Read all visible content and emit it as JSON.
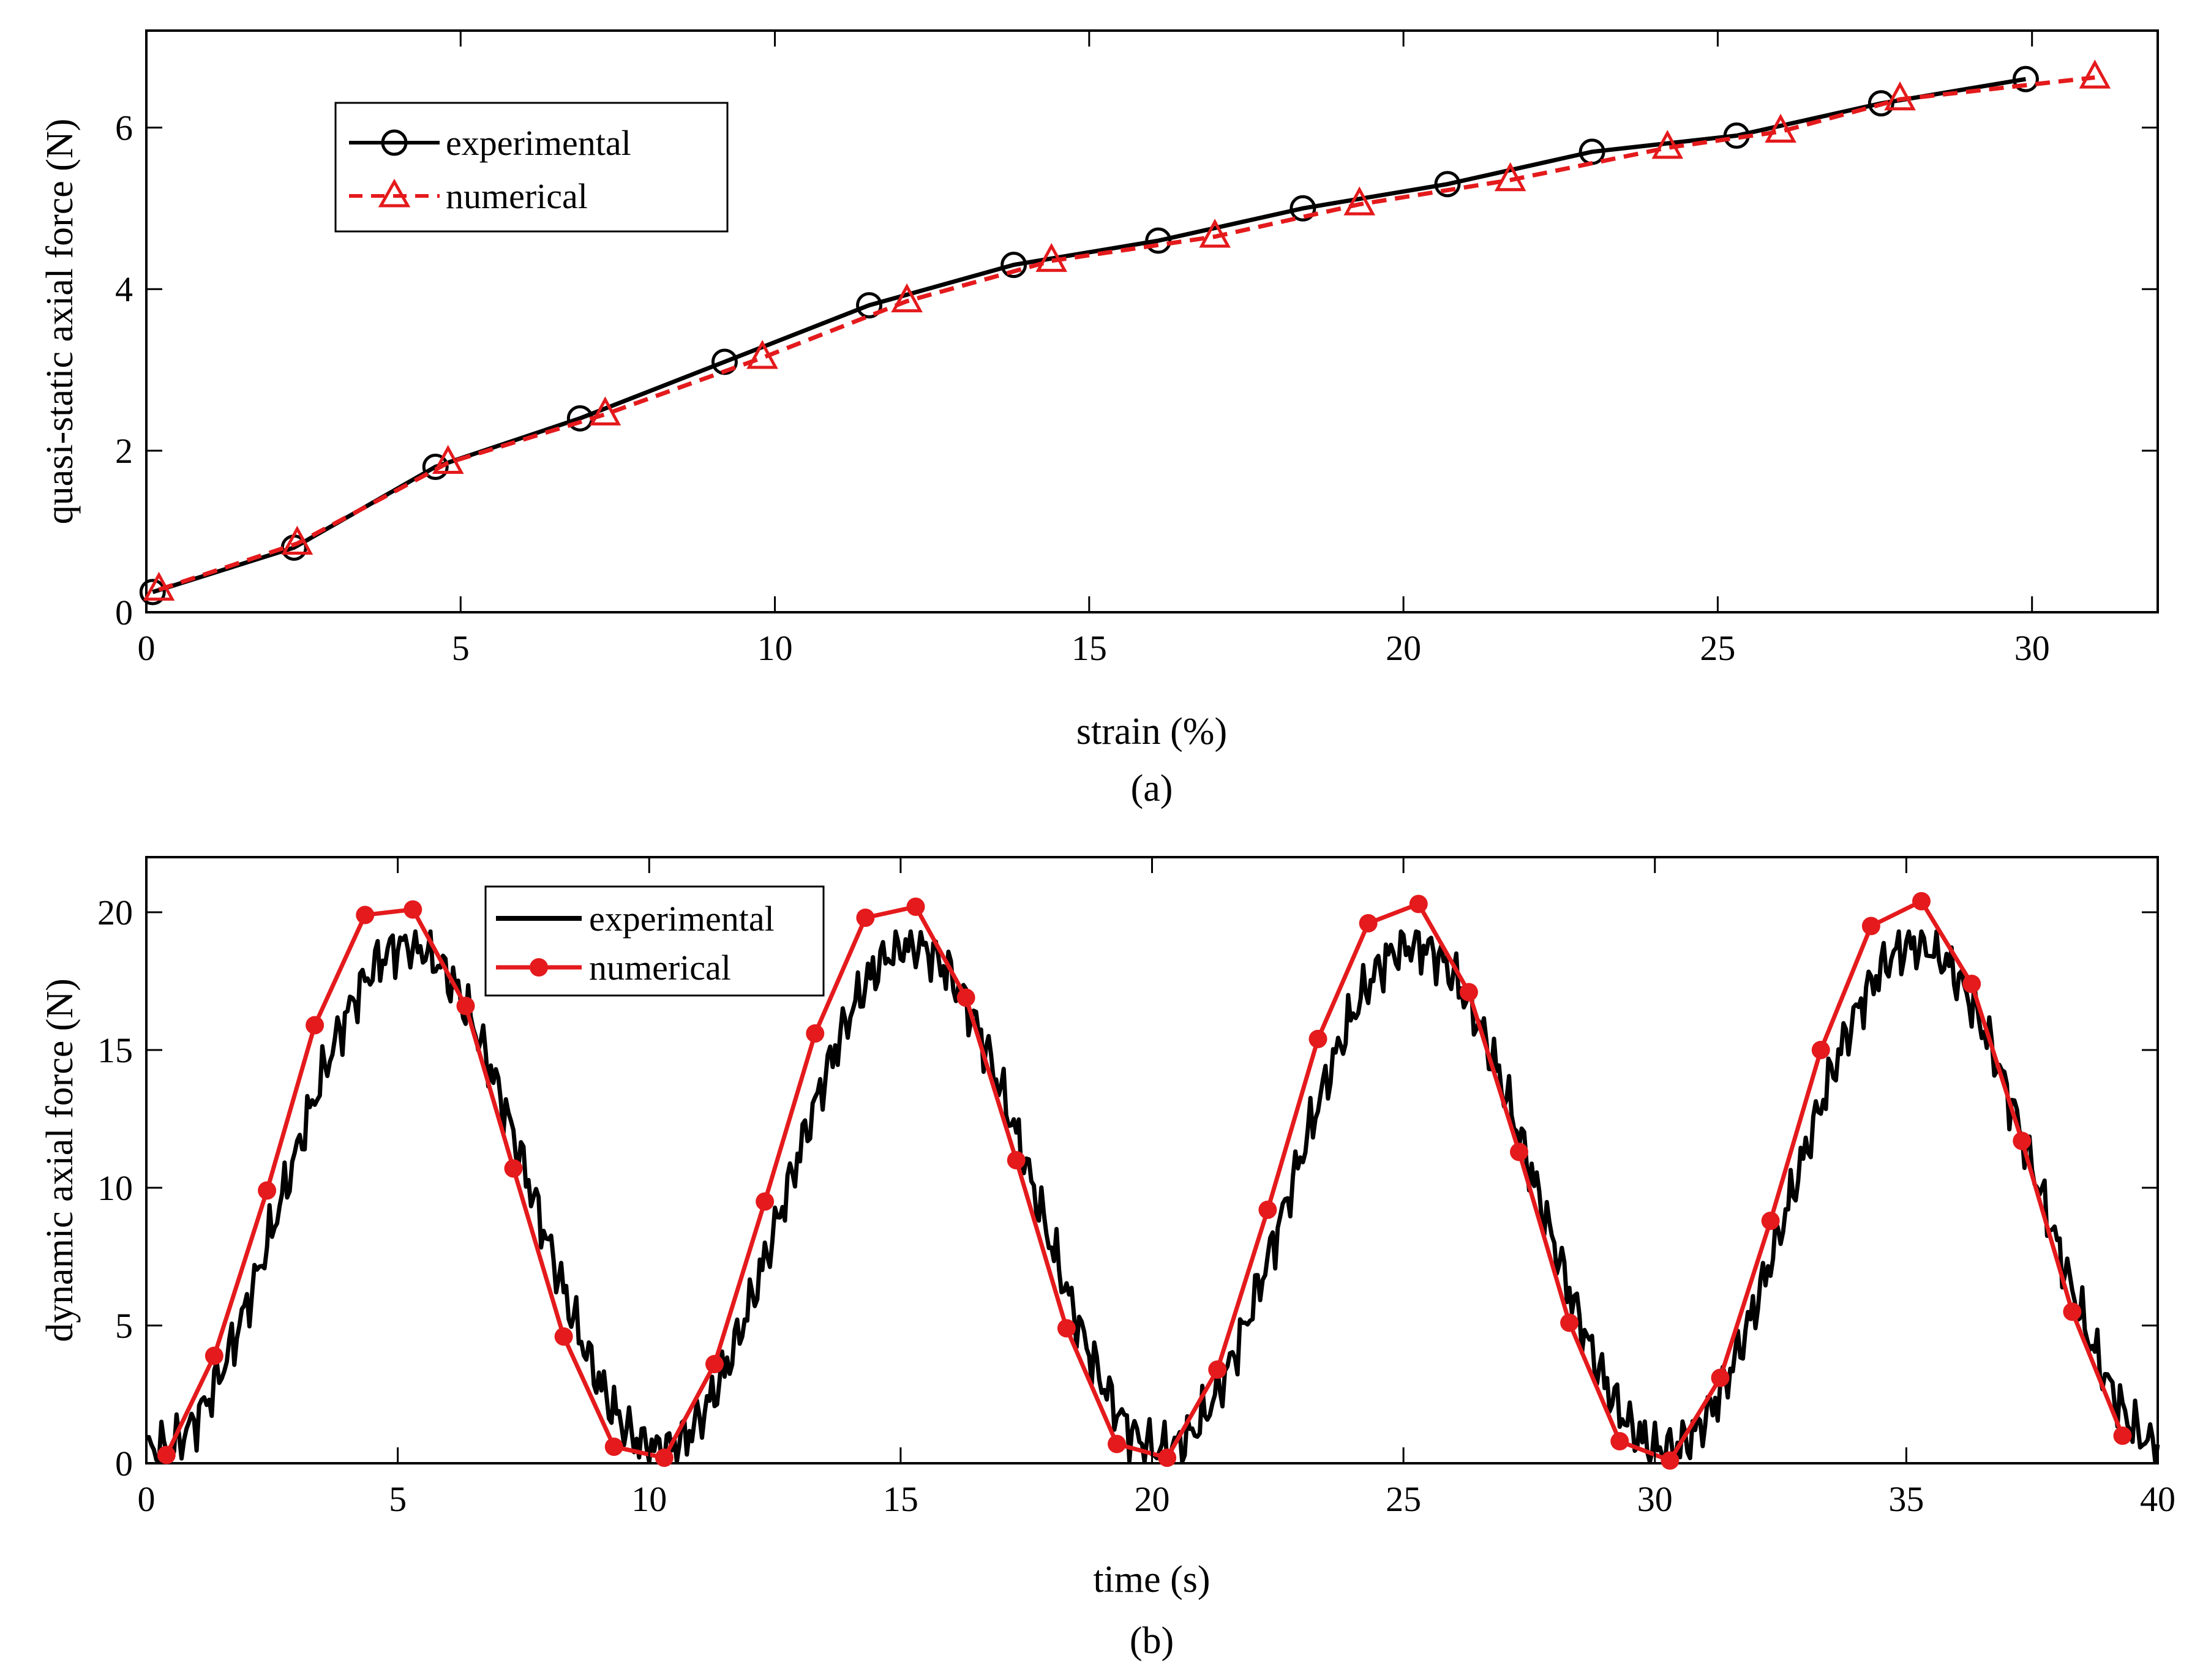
{
  "colors": {
    "experimental": "#000000",
    "numerical": "#e41a1c",
    "axes": "#000000",
    "background": "#ffffff"
  },
  "chart_data": [
    {
      "type": "line",
      "caption": "(a)",
      "title": "",
      "xlabel": "strain (%)",
      "ylabel": "quasi-static axial force (N)",
      "xlim": [
        0,
        32
      ],
      "ylim": [
        0,
        7.2
      ],
      "xticks": [
        0,
        5,
        10,
        15,
        20,
        25,
        30
      ],
      "yticks": [
        0,
        2,
        4,
        6
      ],
      "legend_position": "top-left",
      "series": [
        {
          "name": "experimental",
          "marker": "circle",
          "line": "solid",
          "color": "#000000",
          "x": [
            0.1,
            2.35,
            4.6,
            6.9,
            9.2,
            11.5,
            13.8,
            16.1,
            18.4,
            20.7,
            23.0,
            25.3,
            27.6,
            29.9
          ],
          "y": [
            0.25,
            0.8,
            1.8,
            2.4,
            3.1,
            3.8,
            4.3,
            4.6,
            5.0,
            5.3,
            5.7,
            5.9,
            6.3,
            6.6
          ]
        },
        {
          "name": "numerical",
          "marker": "triangle",
          "line": "dashed",
          "color": "#e41a1c",
          "x": [
            0.2,
            2.4,
            4.8,
            7.3,
            9.8,
            12.1,
            14.4,
            17.0,
            19.3,
            21.7,
            24.2,
            26.0,
            27.9,
            31.0
          ],
          "y": [
            0.28,
            0.85,
            1.85,
            2.45,
            3.15,
            3.85,
            4.35,
            4.65,
            5.05,
            5.35,
            5.75,
            5.95,
            6.35,
            6.62
          ]
        }
      ]
    },
    {
      "type": "line",
      "caption": "(b)",
      "title": "",
      "xlabel": "time (s)",
      "ylabel": "dynamic axial force (N)",
      "xlim": [
        0,
        40
      ],
      "ylim": [
        0,
        22
      ],
      "xticks": [
        0,
        5,
        10,
        15,
        20,
        25,
        30,
        35,
        40
      ],
      "yticks": [
        0,
        5,
        10,
        15,
        20
      ],
      "legend_position": "top-left",
      "series": [
        {
          "name": "experimental",
          "marker": "none",
          "line": "solid",
          "color": "#000000",
          "description": "noisy sinusoid, period 10 s, range ~0.5 to ~19 N, peaks near t = 5, 15, 25, 35 s",
          "period": 10,
          "min": 0.5,
          "max": 18.8,
          "peak_time": 5.2
        },
        {
          "name": "numerical",
          "marker": "filled-circle",
          "line": "solid",
          "color": "#e41a1c",
          "x": [
            0.4,
            1.35,
            2.4,
            3.35,
            4.35,
            5.3,
            6.35,
            7.3,
            8.3,
            9.3,
            10.3,
            11.3,
            12.3,
            13.3,
            14.3,
            15.3,
            16.3,
            17.3,
            18.3,
            19.3,
            20.3,
            21.3,
            22.3,
            23.3,
            24.3,
            25.3,
            26.3,
            27.3,
            28.3,
            29.3,
            30.3,
            31.3,
            32.3,
            33.3,
            34.3,
            35.3,
            36.3,
            37.3,
            38.3,
            39.3
          ],
          "y": [
            0.3,
            3.9,
            9.9,
            15.9,
            19.9,
            20.1,
            16.6,
            10.7,
            4.6,
            0.6,
            0.2,
            3.6,
            9.5,
            15.6,
            19.8,
            20.2,
            16.9,
            11.0,
            4.9,
            0.7,
            0.2,
            3.4,
            9.2,
            15.4,
            19.6,
            20.3,
            17.1,
            11.3,
            5.1,
            0.8,
            0.1,
            3.1,
            8.8,
            15.0,
            19.5,
            20.4,
            17.4,
            11.7,
            5.5,
            1.0
          ]
        }
      ]
    }
  ]
}
